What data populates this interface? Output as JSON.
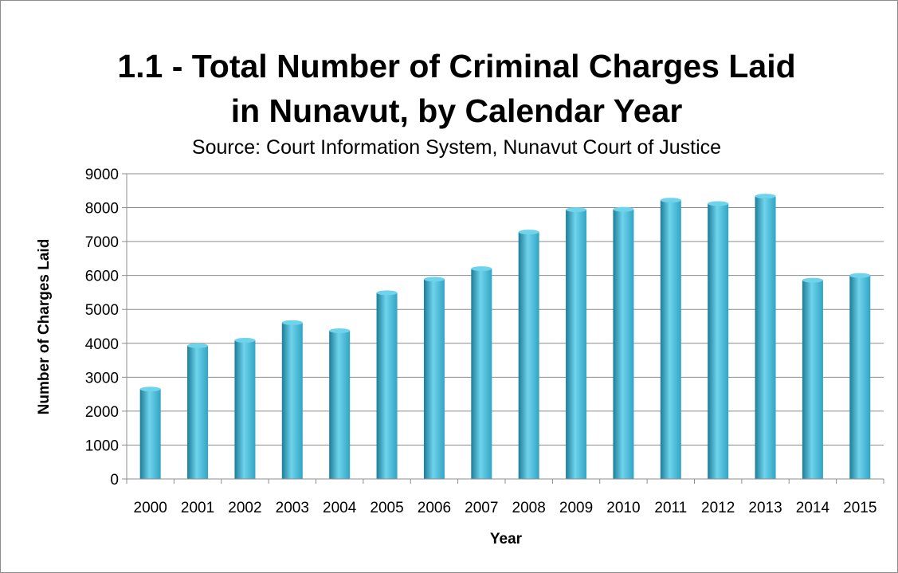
{
  "chart_data": {
    "type": "bar",
    "title_line1": "1.1 - Total Number of Criminal Charges Laid",
    "title_line2": "in Nunavut, by Calendar Year",
    "subtitle": "Source: Court Information System, Nunavut Court of Justice",
    "xlabel": "Year",
    "ylabel": "Number of Charges Laid",
    "categories": [
      "2000",
      "2001",
      "2002",
      "2003",
      "2004",
      "2005",
      "2006",
      "2007",
      "2008",
      "2009",
      "2010",
      "2011",
      "2012",
      "2013",
      "2014",
      "2015"
    ],
    "values": [
      2650,
      3930,
      4090,
      4610,
      4370,
      5490,
      5890,
      6200,
      7280,
      7940,
      7950,
      8220,
      8120,
      8340,
      5860,
      6000
    ],
    "ylim": [
      0,
      9000
    ],
    "yticks": [
      0,
      1000,
      2000,
      3000,
      4000,
      5000,
      6000,
      7000,
      8000,
      9000
    ],
    "grid": true,
    "legend": "none",
    "bar_color": "#31a5c4",
    "bar_color_light": "#6fd3ec",
    "bar_color_dark": "#1c7d98"
  }
}
